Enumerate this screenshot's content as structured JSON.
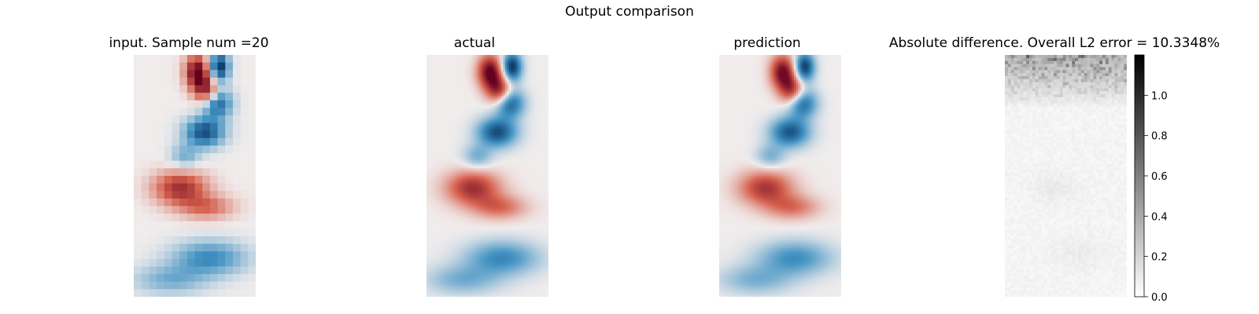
{
  "figure": {
    "title": "Output comparison"
  },
  "chart_data": [
    {
      "type": "heatmap",
      "title": "input. Sample num =20",
      "axes": "off",
      "colormap": "diverging red-white-blue",
      "description_values": {
        "note_grid": [
          16,
          32
        ]
      }
    },
    {
      "type": "heatmap",
      "title": "actual",
      "axes": "off",
      "colormap": "diverging red-white-blue"
    },
    {
      "type": "heatmap",
      "title": "prediction",
      "axes": "off",
      "colormap": "diverging red-white-blue"
    },
    {
      "type": "heatmap",
      "title": "Absolute difference. Overall L2 error = 10.3348%",
      "axes": "off",
      "colormap": "grayscale (white to black)",
      "colorbar": {
        "range": [
          0.0,
          1.2
        ],
        "ticks": [
          0.0,
          0.2,
          0.4,
          0.6,
          0.8,
          1.0
        ],
        "tick_labels": [
          "0.0",
          "0.2",
          "0.4",
          "0.6",
          "0.8",
          "1.0"
        ]
      }
    }
  ],
  "colors": {
    "red": "#67001f",
    "blue": "#053061",
    "neutral": "#f0ecec"
  }
}
